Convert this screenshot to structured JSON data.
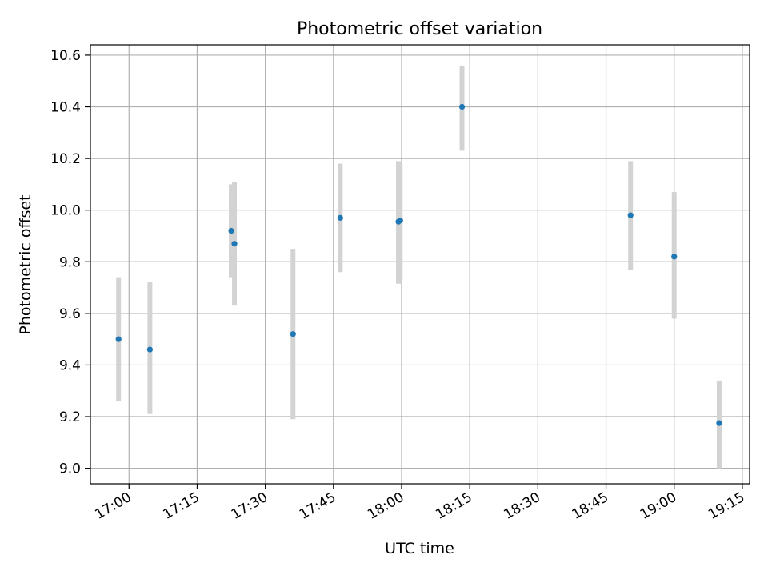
{
  "chart_data": {
    "type": "scatter",
    "title": "Photometric offset variation",
    "xlabel": "UTC time",
    "ylabel": "Photometric offset",
    "x_ticks": [
      "17:00",
      "17:15",
      "17:30",
      "17:45",
      "18:00",
      "18:15",
      "18:30",
      "18:45",
      "19:00",
      "19:15"
    ],
    "y_ticks": [
      "9.0",
      "9.2",
      "9.4",
      "9.6",
      "9.8",
      "10.0",
      "10.2",
      "10.4",
      "10.6"
    ],
    "xlim": [
      "16:51.5",
      "19:16.6"
    ],
    "ylim": [
      8.94,
      10.64
    ],
    "grid": true,
    "colors": {
      "point": "#1f77b4",
      "errorbar": "#d3d3d3",
      "grid": "#b0b0b0"
    },
    "points": [
      {
        "time": "16:57.7",
        "y": 9.5,
        "ylow": 9.26,
        "yhigh": 9.74
      },
      {
        "time": "17:04.6",
        "y": 9.46,
        "ylow": 9.21,
        "yhigh": 9.72
      },
      {
        "time": "17:22.5",
        "y": 9.92,
        "ylow": 9.74,
        "yhigh": 10.1
      },
      {
        "time": "17:23.2",
        "y": 9.87,
        "ylow": 9.63,
        "yhigh": 10.11
      },
      {
        "time": "17:36.1",
        "y": 9.52,
        "ylow": 9.19,
        "yhigh": 9.85
      },
      {
        "time": "17:46.5",
        "y": 9.97,
        "ylow": 9.76,
        "yhigh": 10.18
      },
      {
        "time": "17:59.3",
        "y": 9.955,
        "ylow": 9.715,
        "yhigh": 10.19
      },
      {
        "time": "17:59.7",
        "y": 9.96,
        "ylow": 9.73,
        "yhigh": 10.18
      },
      {
        "time": "18:13.3",
        "y": 10.4,
        "ylow": 10.23,
        "yhigh": 10.56
      },
      {
        "time": "18:50.4",
        "y": 9.98,
        "ylow": 9.77,
        "yhigh": 10.19
      },
      {
        "time": "19:00.0",
        "y": 9.82,
        "ylow": 9.58,
        "yhigh": 10.07
      },
      {
        "time": "19:09.9",
        "y": 9.175,
        "ylow": 9.0,
        "yhigh": 9.34
      }
    ]
  }
}
